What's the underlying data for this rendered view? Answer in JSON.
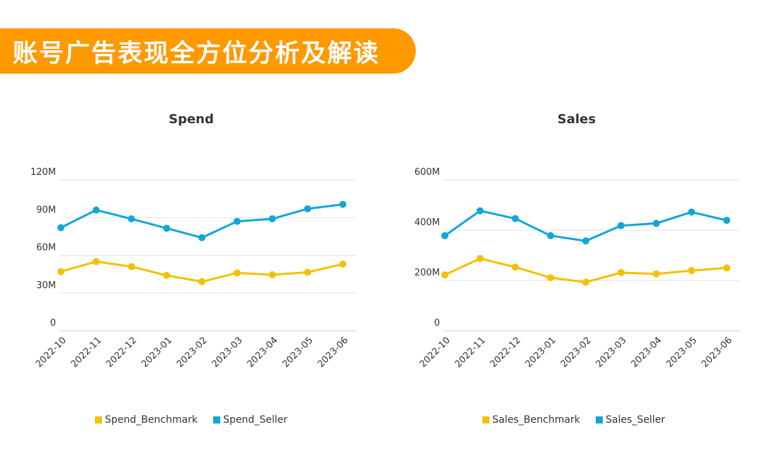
{
  "header": {
    "title": "账号广告表现全方位分析及解读",
    "color": "#FF9900"
  },
  "colors": {
    "benchmark": "#F2C200",
    "seller": "#11A6D8",
    "grid": "#E2E2E2",
    "axis": "#D0D0D0",
    "text": "#333333"
  },
  "chart_data": [
    {
      "type": "line",
      "title": "Spend",
      "xlabel": "",
      "ylabel": "",
      "categories": [
        "2022-10",
        "2022-11",
        "2022-12",
        "2023-01",
        "2023-02",
        "2023-03",
        "2023-04",
        "2023-05",
        "2023-06"
      ],
      "ylim": [
        0,
        120
      ],
      "yticks": [
        0,
        30,
        60,
        90,
        120
      ],
      "ytick_labels": [
        "0",
        "30M",
        "60M",
        "90M",
        "120M"
      ],
      "grid": true,
      "legend_position": "bottom-center",
      "series": [
        {
          "name": "Spend_Benchmark",
          "color": "#F2C200",
          "values": [
            47,
            55,
            51,
            44,
            39,
            46,
            44.5,
            46.5,
            53
          ]
        },
        {
          "name": "Spend_Seller",
          "color": "#11A6D8",
          "values": [
            82,
            96,
            89,
            81.5,
            74,
            87,
            89,
            97,
            100.5
          ]
        }
      ]
    },
    {
      "type": "line",
      "title": "Sales",
      "xlabel": "",
      "ylabel": "",
      "categories": [
        "2022-10",
        "2022-11",
        "2022-12",
        "2023-01",
        "2023-02",
        "2023-03",
        "2023-04",
        "2023-05",
        "2023-06"
      ],
      "ylim": [
        0,
        600
      ],
      "yticks": [
        0,
        200,
        400,
        600
      ],
      "ytick_labels": [
        "0",
        "200M",
        "400M",
        "600M"
      ],
      "grid": true,
      "legend_position": "bottom-center",
      "series": [
        {
          "name": "Sales_Benchmark",
          "color": "#F2C200",
          "values": [
            222,
            287,
            253,
            211,
            193,
            231,
            226,
            239,
            250
          ]
        },
        {
          "name": "Sales_Seller",
          "color": "#11A6D8",
          "values": [
            378,
            477,
            446,
            378,
            357,
            418,
            427,
            472,
            439
          ]
        }
      ]
    }
  ]
}
